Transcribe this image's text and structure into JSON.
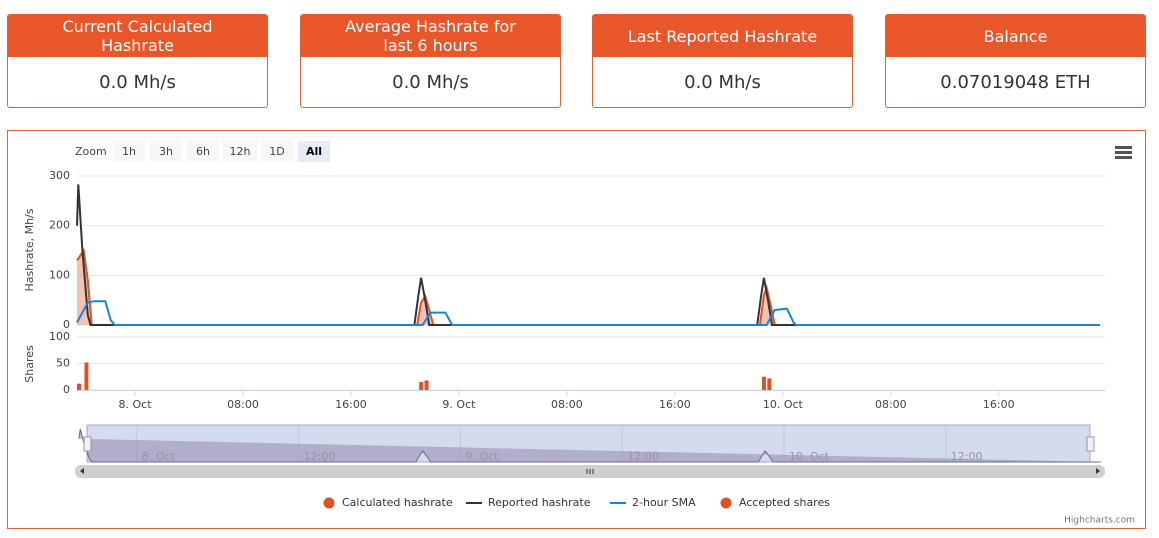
{
  "cards": [
    {
      "title": "Current Calculated Hashrate",
      "value": "0.0 Mh/s"
    },
    {
      "title": "Average Hashrate for last 6 hours",
      "value": "0.0 Mh/s"
    },
    {
      "title": "Last Reported Hashrate",
      "value": "0.0 Mh/s"
    },
    {
      "title": "Balance",
      "value": "0.07019048 ETH"
    }
  ],
  "chart_data": {
    "type": "stock",
    "zoom_label": "Zoom",
    "zoom_buttons": [
      "1h",
      "3h",
      "6h",
      "12h",
      "1D",
      "All"
    ],
    "zoom_selected": 5,
    "xlim": [
      -4.3,
      71.5
    ],
    "xticks": [
      {
        "value": 0,
        "label": "8. Oct"
      },
      {
        "value": 8,
        "label": "08:00"
      },
      {
        "value": 16,
        "label": "16:00"
      },
      {
        "value": 24,
        "label": "9. Oct"
      },
      {
        "value": 32,
        "label": "08:00"
      },
      {
        "value": 40,
        "label": "16:00"
      },
      {
        "value": 48,
        "label": "10. Oct"
      },
      {
        "value": 56,
        "label": "08:00"
      },
      {
        "value": 64,
        "label": "16:00"
      }
    ],
    "ylabel": "Hashrate, Mh/s",
    "ylim": [
      0,
      300
    ],
    "yticks": [
      0,
      100,
      200,
      300
    ],
    "shares_axis": {
      "label": "Shares",
      "ylim": [
        0,
        100
      ],
      "yticks": [
        0,
        50,
        100
      ]
    },
    "grid": true,
    "series": [
      {
        "name": "Calculated hashrate",
        "type": "area",
        "color": "#d9532b",
        "x": [
          -4.3,
          -3.8,
          -3.5,
          -3.2,
          20.9,
          21.2,
          21.5,
          21.8,
          22.1,
          46.3,
          46.6,
          46.8,
          47.1,
          47.4,
          71.5
        ],
        "values": [
          130,
          150,
          90,
          0,
          0,
          45,
          58,
          30,
          0,
          0,
          60,
          75,
          40,
          0,
          0
        ]
      },
      {
        "name": "Reported hashrate",
        "type": "line",
        "color": "#333333",
        "x": [
          -4.3,
          -4.2,
          -3.9,
          -3.5,
          -3.3,
          20.7,
          21.0,
          21.2,
          21.5,
          21.8,
          46.1,
          46.4,
          46.6,
          46.9,
          47.2,
          71.5
        ],
        "values": [
          200,
          283,
          150,
          20,
          0,
          0,
          60,
          95,
          50,
          0,
          0,
          60,
          95,
          50,
          0,
          0
        ]
      },
      {
        "name": "2-hour SMA",
        "type": "line",
        "color": "#1a84d4",
        "x": [
          -4.3,
          -3.5,
          -3.0,
          -2.2,
          -1.8,
          -1.5,
          21.3,
          21.9,
          23.0,
          23.5,
          46.8,
          47.4,
          48.3,
          48.8,
          49.0,
          71.5
        ],
        "values": [
          5,
          45,
          48,
          48,
          10,
          0,
          0,
          25,
          25,
          0,
          0,
          30,
          33,
          5,
          0,
          0
        ]
      },
      {
        "name": "Accepted shares",
        "type": "column",
        "color": "#d9532b",
        "axis": "shares",
        "x": [
          -4.15,
          -3.6,
          21.2,
          21.6,
          46.6,
          47.0
        ],
        "values": [
          12,
          52,
          15,
          18,
          25,
          22
        ]
      }
    ],
    "navigator": {
      "xlim": [
        -3.7,
        70.7
      ],
      "xticks": [
        {
          "value": 0,
          "label": "8. Oct"
        },
        {
          "value": 12,
          "label": "12:00"
        },
        {
          "value": 24,
          "label": "9. Oct"
        },
        {
          "value": 36,
          "label": "12:00"
        },
        {
          "value": 48,
          "label": "10. Oct"
        },
        {
          "value": 60,
          "label": "12:00"
        }
      ]
    },
    "credits": "Highcharts.com"
  }
}
